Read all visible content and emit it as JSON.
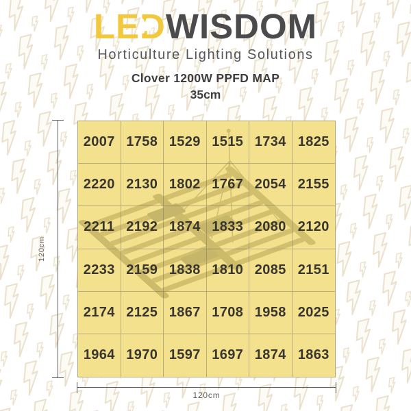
{
  "logo": {
    "led_prefix": "LE",
    "led_d": "D",
    "wisdom": "WISDOM",
    "tagline": "Horticulture Lighting Solutions"
  },
  "title": {
    "line1": "Clover 1200W PPFD MAP",
    "line2": "35cm"
  },
  "dimensions": {
    "height_label": "120cm",
    "width_label": "120cm"
  },
  "chart_data": {
    "type": "heatmap",
    "title": "Clover 1200W PPFD MAP",
    "subtitle": "35cm",
    "grid": "6x6",
    "area_width_label": "120cm",
    "area_height_label": "120cm",
    "values": [
      [
        2007,
        1758,
        1529,
        1515,
        1734,
        1825
      ],
      [
        2220,
        2130,
        1802,
        1767,
        2054,
        2155
      ],
      [
        2211,
        2192,
        1874,
        1833,
        2080,
        2120
      ],
      [
        2233,
        2159,
        1838,
        1810,
        2085,
        2151
      ],
      [
        2174,
        2125,
        1867,
        1708,
        1958,
        2025
      ],
      [
        1964,
        1970,
        1597,
        1697,
        1874,
        1863
      ]
    ]
  },
  "colors": {
    "brand_yellow": "#f2c83e",
    "brand_dark": "#4b4b4d",
    "cell_fill": "#f3e18d",
    "cell_text": "#38362f",
    "pattern_line": "#e9ddc7"
  }
}
